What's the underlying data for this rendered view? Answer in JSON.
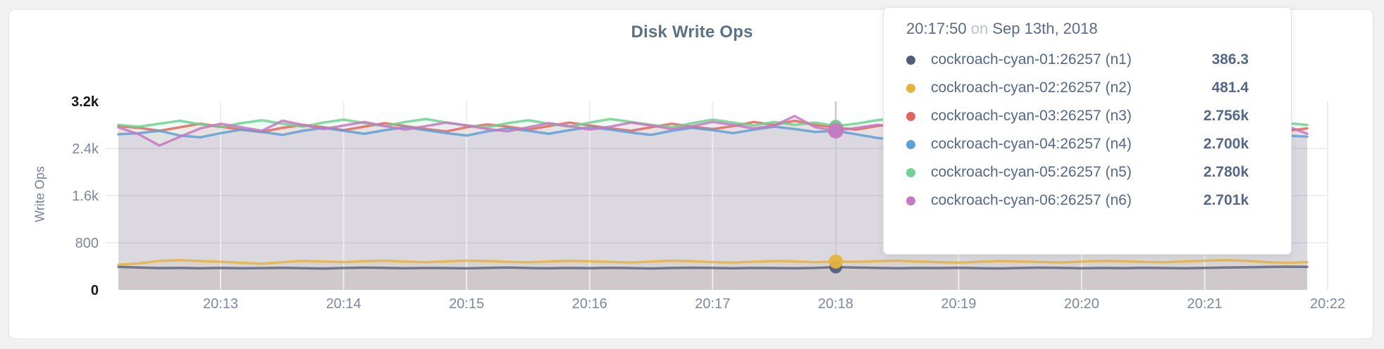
{
  "chart": {
    "title": "Disk Write Ops",
    "ylabel": "Write Ops"
  },
  "tooltip": {
    "time": "20:17:50",
    "conjunction": "on",
    "date": "Sep 13th, 2018"
  },
  "chart_data": {
    "type": "line",
    "title": "Disk Write Ops",
    "ylabel": "Write Ops",
    "xlabel": "",
    "ylim": [
      0,
      3200
    ],
    "y_ticks": [
      "0",
      "800",
      "1.6k",
      "2.4k",
      "3.2k"
    ],
    "x_ticks": [
      "20:13",
      "20:14",
      "20:15",
      "20:16",
      "20:17",
      "20:18",
      "20:19",
      "20:20",
      "20:21",
      "20:22"
    ],
    "grid": true,
    "legend_position": "tooltip",
    "hover_index": 35,
    "hover_time": "20:17:50",
    "point_interval_seconds": 10,
    "series": [
      {
        "name": "cockroach-cyan-01:26257 (n1)",
        "color": "#545e7b",
        "hover_value": 386.3,
        "hover_display": "386.3",
        "dot_radius": 9,
        "values": [
          392,
          378,
          370,
          374,
          368,
          372,
          366,
          370,
          375,
          369,
          363,
          371,
          377,
          372,
          368,
          374,
          370,
          365,
          372,
          378,
          371,
          367,
          373,
          369,
          375,
          370,
          364,
          371,
          376,
          372,
          368,
          374,
          370,
          366,
          372,
          386.3,
          378,
          372,
          368,
          374,
          370,
          375,
          369,
          364,
          371,
          377,
          372,
          368,
          373,
          369,
          375,
          371,
          367,
          373,
          378,
          383,
          389,
          394,
          391
        ]
      },
      {
        "name": "cockroach-cyan-02:26257 (n2)",
        "color": "#e6b341",
        "hover_value": 481.4,
        "hover_display": "481.4",
        "dot_radius": 10,
        "values": [
          425,
          450,
          492,
          505,
          490,
          478,
          460,
          445,
          470,
          492,
          481,
          473,
          488,
          495,
          480,
          470,
          483,
          497,
          489,
          476,
          468,
          482,
          493,
          486,
          474,
          466,
          480,
          495,
          487,
          472,
          464,
          478,
          490,
          483,
          470,
          481.4,
          476,
          488,
          495,
          482,
          470,
          463,
          477,
          490,
          484,
          473,
          466,
          480,
          492,
          486,
          475,
          468,
          482,
          496,
          505,
          494,
          470,
          460,
          472
        ]
      },
      {
        "name": "cockroach-cyan-03:26257 (n3)",
        "color": "#e0675e",
        "hover_value": 2756,
        "hover_display": "2.756k",
        "dot_radius": 10,
        "values": [
          2780,
          2750,
          2700,
          2760,
          2820,
          2770,
          2720,
          2680,
          2750,
          2800,
          2760,
          2710,
          2770,
          2830,
          2780,
          2730,
          2690,
          2760,
          2810,
          2770,
          2720,
          2780,
          2840,
          2790,
          2740,
          2700,
          2760,
          2820,
          2770,
          2730,
          2780,
          2850,
          2800,
          2870,
          2800,
          2756,
          2720,
          2780,
          2830,
          2780,
          2730,
          2690,
          2750,
          2810,
          2760,
          2710,
          2770,
          2820,
          2780,
          2730,
          2700,
          2760,
          2810,
          2770,
          2720,
          2780,
          2730,
          2700,
          2740
        ]
      },
      {
        "name": "cockroach-cyan-04:26257 (n4)",
        "color": "#5f9fd7",
        "hover_value": 2700,
        "hover_display": "2.700k",
        "dot_radius": 8,
        "values": [
          2640,
          2660,
          2700,
          2620,
          2590,
          2660,
          2720,
          2680,
          2630,
          2700,
          2750,
          2700,
          2650,
          2710,
          2760,
          2710,
          2660,
          2620,
          2690,
          2740,
          2700,
          2650,
          2710,
          2760,
          2720,
          2670,
          2630,
          2700,
          2750,
          2710,
          2660,
          2720,
          2770,
          2730,
          2680,
          2700,
          2640,
          2580,
          2540,
          2600,
          2670,
          2720,
          2680,
          2630,
          2690,
          2740,
          2700,
          2650,
          2610,
          2680,
          2730,
          2690,
          2640,
          2700,
          2750,
          2710,
          2660,
          2620,
          2600
        ]
      },
      {
        "name": "cockroach-cyan-05:26257 (n5)",
        "color": "#6fd192",
        "hover_value": 2780,
        "hover_display": "2.780k",
        "dot_radius": 9,
        "values": [
          2800,
          2770,
          2820,
          2870,
          2810,
          2760,
          2830,
          2880,
          2820,
          2770,
          2840,
          2890,
          2830,
          2780,
          2850,
          2900,
          2840,
          2790,
          2760,
          2830,
          2880,
          2820,
          2770,
          2840,
          2900,
          2850,
          2800,
          2760,
          2830,
          2890,
          2840,
          2790,
          2850,
          2800,
          2840,
          2780,
          2820,
          2880,
          2920,
          2850,
          2790,
          2840,
          2890,
          2830,
          2780,
          2750,
          2820,
          2870,
          2820,
          2780,
          2840,
          2800,
          2850,
          2810,
          2860,
          2820,
          2780,
          2830,
          2800
        ]
      },
      {
        "name": "cockroach-cyan-06:26257 (n6)",
        "color": "#c678c0",
        "hover_value": 2701,
        "hover_display": "2.701k",
        "dot_radius": 11,
        "values": [
          2760,
          2640,
          2450,
          2600,
          2740,
          2820,
          2760,
          2700,
          2870,
          2800,
          2730,
          2790,
          2850,
          2780,
          2720,
          2780,
          2840,
          2790,
          2730,
          2690,
          2760,
          2830,
          2780,
          2720,
          2770,
          2840,
          2790,
          2730,
          2780,
          2850,
          2800,
          2740,
          2790,
          2950,
          2760,
          2701,
          2750,
          2800,
          2760,
          2700,
          2750,
          2810,
          2760,
          2710,
          2760,
          2820,
          2770,
          2720,
          2770,
          2830,
          2780,
          2730,
          2700,
          2760,
          2810,
          2770,
          2720,
          2780,
          2650
        ]
      }
    ]
  }
}
